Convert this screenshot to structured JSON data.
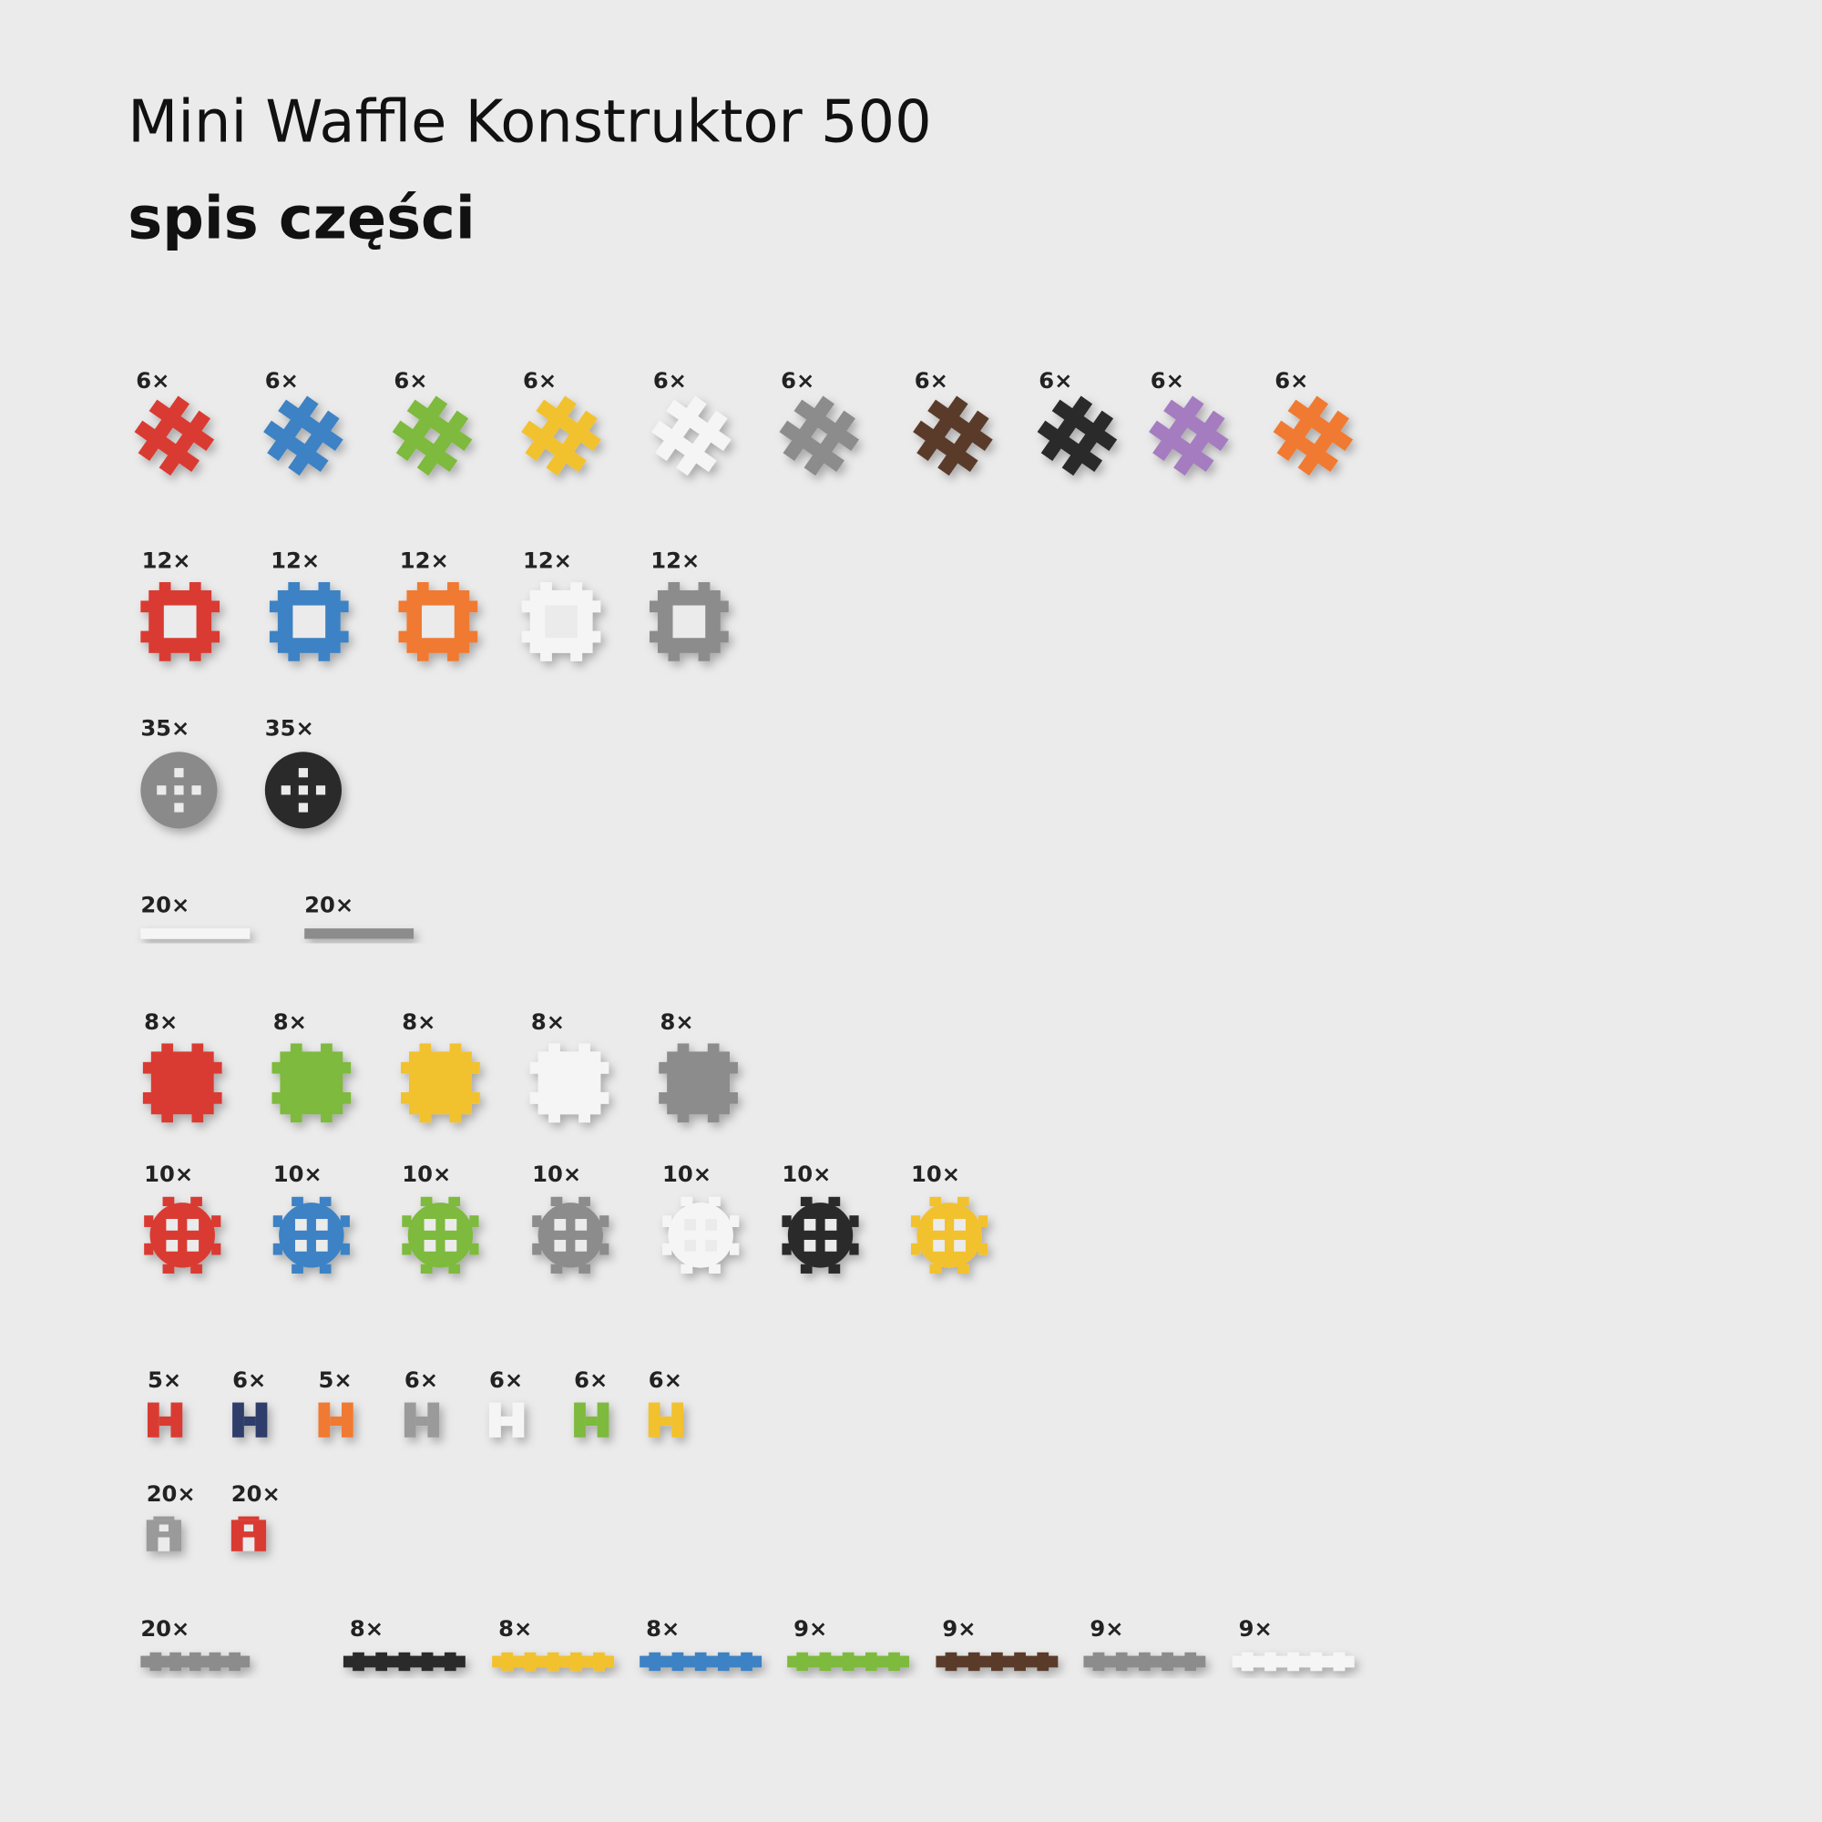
{
  "header": {
    "title": "Mini Waffle Konstruktor 500",
    "subtitle": "spis części"
  },
  "rows": [
    {
      "items": [
        {
          "label": "6×",
          "color": "#d93a32"
        },
        {
          "label": "6×",
          "color": "#3d82c4"
        },
        {
          "label": "6×",
          "color": "#7dba3c"
        },
        {
          "label": "6×",
          "color": "#f2c12e"
        },
        {
          "label": "6×",
          "color": "#f5f5f5"
        },
        {
          "label": "6×",
          "color": "#8c8c8c"
        },
        {
          "label": "6×",
          "color": "#5a3a2a"
        },
        {
          "label": "6×",
          "color": "#2b2b2b"
        },
        {
          "label": "6×",
          "color": "#a57cc0"
        },
        {
          "label": "6×",
          "color": "#f07a30"
        }
      ]
    },
    {
      "items": [
        {
          "label": "12×",
          "color": "#d93a32"
        },
        {
          "label": "12×",
          "color": "#3d82c4"
        },
        {
          "label": "12×",
          "color": "#f07a30"
        },
        {
          "label": "12×",
          "color": "#f5f5f5"
        },
        {
          "label": "12×",
          "color": "#8c8c8c"
        }
      ]
    },
    {
      "items": [
        {
          "label": "35×",
          "color": "#8a8a8a"
        },
        {
          "label": "35×",
          "color": "#2b2b2b"
        }
      ]
    },
    {
      "items": [
        {
          "label": "20×",
          "color": "#f5f5f5"
        },
        {
          "label": "20×",
          "color": "#8c8c8c"
        }
      ]
    },
    {
      "items": [
        {
          "label": "8×",
          "color": "#d93a32"
        },
        {
          "label": "8×",
          "color": "#7dba3c"
        },
        {
          "label": "8×",
          "color": "#f2c12e"
        },
        {
          "label": "8×",
          "color": "#f5f5f5"
        },
        {
          "label": "8×",
          "color": "#8c8c8c"
        }
      ]
    },
    {
      "items": [
        {
          "label": "10×",
          "color": "#d93a32"
        },
        {
          "label": "10×",
          "color": "#3d82c4"
        },
        {
          "label": "10×",
          "color": "#7dba3c"
        },
        {
          "label": "10×",
          "color": "#8c8c8c"
        },
        {
          "label": "10×",
          "color": "#f5f5f5"
        },
        {
          "label": "10×",
          "color": "#2b2b2b"
        },
        {
          "label": "10×",
          "color": "#f2c12e"
        }
      ]
    },
    {
      "items": [
        {
          "label": "5×",
          "color": "#d93a32"
        },
        {
          "label": "6×",
          "color": "#2f3d6a"
        },
        {
          "label": "5×",
          "color": "#f07a30"
        },
        {
          "label": "6×",
          "color": "#9a9a9a"
        },
        {
          "label": "6×",
          "color": "#f5f5f5"
        },
        {
          "label": "6×",
          "color": "#7dba3c"
        },
        {
          "label": "6×",
          "color": "#f2c12e"
        }
      ]
    },
    {
      "items": [
        {
          "label": "20×",
          "color": "#9a9a9a"
        },
        {
          "label": "20×",
          "color": "#d93a32"
        }
      ]
    },
    {
      "items": [
        {
          "label": "20×",
          "color": "#8c8c8c"
        },
        {
          "label": "8×",
          "color": "#2b2b2b"
        },
        {
          "label": "8×",
          "color": "#f2c12e"
        },
        {
          "label": "8×",
          "color": "#3d82c4"
        },
        {
          "label": "9×",
          "color": "#7dba3c"
        },
        {
          "label": "9×",
          "color": "#5a3a2a"
        },
        {
          "label": "9×",
          "color": "#8c8c8c"
        },
        {
          "label": "9×",
          "color": "#f5f5f5"
        }
      ]
    }
  ]
}
